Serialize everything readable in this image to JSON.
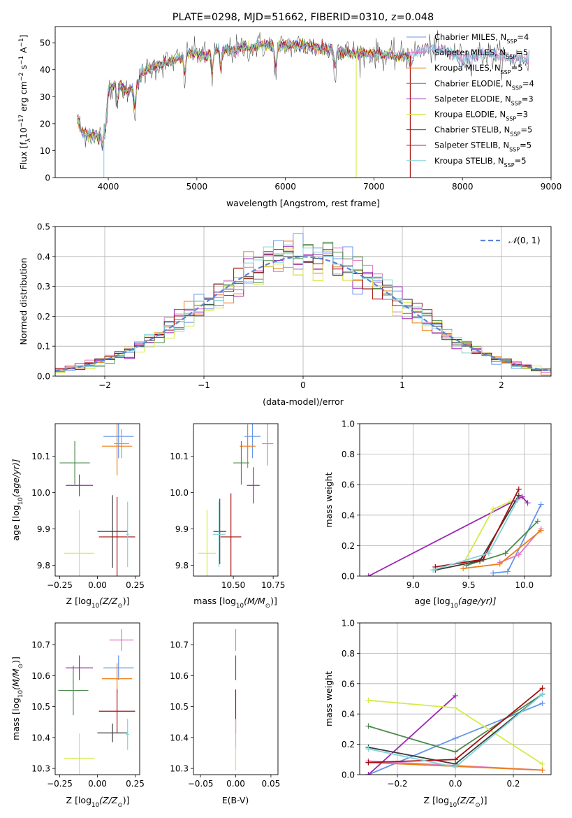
{
  "figure": {
    "colors": {
      "chabrier_miles": "#6495ed",
      "salpeter_miles": "#e377c2",
      "kroupa_miles": "#ee7d18",
      "chabrier_elodie": "#4e8a4e",
      "salpeter_elodie": "#9c27b0",
      "kroupa_elodie": "#d6ea4a",
      "chabrier_stelib": "#3c3c3c",
      "salpeter_stelib": "#a50f0f",
      "kroupa_stelib": "#7fd4d8",
      "normal_curve": "#5b84d6"
    }
  },
  "chart_data": [
    {
      "id": "spectrum",
      "type": "line",
      "title": "PLATE=0298, MJD=51662, FIBERID=0310, z=0.048",
      "xlabel": "wavelength [Angstrom, rest frame]",
      "ylabel": "Flux [f",
      "ylabel_sub": "λ",
      "ylabel_rest": "10",
      "ylabel_sup1": "−17",
      "ylabel_rest2": " erg cm",
      "ylabel_sup2": "−2",
      "ylabel_rest3": " s",
      "ylabel_sup3": "−1",
      "ylabel_rest4": " A",
      "ylabel_sup4": "−1",
      "ylabel_end": "]",
      "xlim": [
        3400,
        9000
      ],
      "ylim": [
        0,
        56
      ],
      "xticks": [
        4000,
        5000,
        6000,
        7000,
        8000,
        9000
      ],
      "yticks": [
        0,
        10,
        20,
        30,
        40,
        50
      ],
      "continuum": [
        [
          3650,
          22
        ],
        [
          3700,
          17
        ],
        [
          3800,
          16
        ],
        [
          3900,
          15
        ],
        [
          3950,
          20
        ],
        [
          4000,
          33
        ],
        [
          4100,
          35
        ],
        [
          4200,
          32
        ],
        [
          4300,
          33
        ],
        [
          4400,
          39
        ],
        [
          4500,
          41
        ],
        [
          4600,
          42
        ],
        [
          4700,
          43
        ],
        [
          4800,
          44
        ],
        [
          4900,
          46
        ],
        [
          5000,
          46
        ],
        [
          5100,
          45
        ],
        [
          5200,
          47
        ],
        [
          5300,
          47
        ],
        [
          5400,
          47
        ],
        [
          5500,
          48
        ],
        [
          5600,
          48
        ],
        [
          5700,
          49
        ],
        [
          5800,
          49
        ],
        [
          5900,
          48
        ],
        [
          6000,
          49
        ],
        [
          6200,
          49
        ],
        [
          6400,
          48
        ],
        [
          6600,
          47
        ],
        [
          6800,
          46
        ],
        [
          7000,
          46
        ],
        [
          7200,
          45
        ],
        [
          7400,
          45
        ],
        [
          7600,
          48
        ],
        [
          7800,
          47
        ],
        [
          8000,
          44
        ],
        [
          8200,
          46
        ],
        [
          8400,
          45
        ],
        [
          8600,
          44
        ],
        [
          8750,
          44
        ]
      ],
      "model_breaks": [
        {
          "series": "Kroupa ELODIE",
          "wavelength": 6800,
          "min_flux": 0
        },
        {
          "series": "Kroupa MILES",
          "wavelength": 7410,
          "min_flux": 0
        },
        {
          "series": "Salpeter STELIB",
          "wavelength": 7410,
          "min_flux": 0
        },
        {
          "series": "Kroupa STELIB",
          "wavelength": 3950,
          "min_flux": 0
        }
      ],
      "legend": [
        {
          "key": "chabrier_miles",
          "label": "Chabrier MILES, N",
          "sub": "SSP",
          "tail": "=4"
        },
        {
          "key": "salpeter_miles",
          "label": "Salpeter MILES, N",
          "sub": "SSP",
          "tail": "=5"
        },
        {
          "key": "kroupa_miles",
          "label": "Kroupa MILES, N",
          "sub": "SSP",
          "tail": "=5"
        },
        {
          "key": "chabrier_elodie",
          "label": "Chabrier ELODIE, N",
          "sub": "SSP",
          "tail": "=4"
        },
        {
          "key": "salpeter_elodie",
          "label": "Salpeter ELODIE, N",
          "sub": "SSP",
          "tail": "=3"
        },
        {
          "key": "kroupa_elodie",
          "label": "Kroupa ELODIE, N",
          "sub": "SSP",
          "tail": "=3"
        },
        {
          "key": "chabrier_stelib",
          "label": "Chabrier STELIB, N",
          "sub": "SSP",
          "tail": "=5"
        },
        {
          "key": "salpeter_stelib",
          "label": "Salpeter STELIB, N",
          "sub": "SSP",
          "tail": "=5"
        },
        {
          "key": "kroupa_stelib",
          "label": "Kroupa STELIB, N",
          "sub": "SSP",
          "tail": "=5"
        }
      ],
      "legend_position": "top-right"
    },
    {
      "id": "residuals",
      "type": "histogram",
      "xlabel": "(data-model)/error",
      "ylabel": "Normed distribution",
      "xlim": [
        -2.5,
        2.5
      ],
      "ylim": [
        0,
        0.5
      ],
      "xticks": [
        -2,
        -1,
        0,
        1,
        2
      ],
      "yticks": [
        0.0,
        0.1,
        0.2,
        0.3,
        0.4,
        0.5
      ],
      "bin_width": 0.1,
      "grid": true,
      "legend": [
        {
          "label": "N(0, 1)",
          "style": "dashed"
        }
      ],
      "legend_position": "top-right"
    },
    {
      "id": "age_vs_Z",
      "type": "errorbar",
      "xlabel": "Z [log",
      "xlabel_sub": "10",
      "xlabel_rest": "(Z/Z",
      "xlabel_sub2": "⊙",
      "xlabel_end": ")]",
      "ylabel": "age  [log",
      "ylabel_sub": "10",
      "ylabel_rest": "(age/yr)]",
      "xlim": [
        -0.28,
        0.28
      ],
      "ylim": [
        9.77,
        10.19
      ],
      "xticks": [
        -0.25,
        0.0,
        0.25
      ],
      "yticks": [
        9.8,
        9.9,
        10.0,
        10.1
      ],
      "points": [
        {
          "key": "chabrier_miles",
          "x": 0.14,
          "y": 10.155,
          "xerr": 0.1,
          "yerr": 0.06
        },
        {
          "key": "salpeter_miles",
          "x": 0.16,
          "y": 10.135,
          "xerr": 0.05,
          "yerr": 0.04
        },
        {
          "key": "kroupa_miles",
          "x": 0.13,
          "y": 10.128,
          "xerr": 0.1,
          "yerr": 0.08
        },
        {
          "key": "chabrier_elodie",
          "x": -0.15,
          "y": 10.082,
          "xerr": 0.1,
          "yerr": 0.06
        },
        {
          "key": "salpeter_elodie",
          "x": -0.12,
          "y": 10.02,
          "xerr": 0.09,
          "yerr": 0.03
        },
        {
          "key": "kroupa_elodie",
          "x": -0.12,
          "y": 9.833,
          "xerr": 0.1,
          "yerr": 0.12
        },
        {
          "key": "chabrier_stelib",
          "x": 0.1,
          "y": 9.893,
          "xerr": 0.1,
          "yerr": 0.1
        },
        {
          "key": "salpeter_stelib",
          "x": 0.13,
          "y": 9.878,
          "xerr": 0.12,
          "yerr": 0.11
        },
        {
          "key": "kroupa_stelib",
          "x": 0.2,
          "y": 9.885,
          "xerr": 0.01,
          "yerr": 0.09
        }
      ]
    },
    {
      "id": "age_vs_mass",
      "type": "errorbar",
      "xlabel": "mass [log",
      "xlabel_sub": "10",
      "xlabel_rest": "(M/M",
      "xlabel_sub2": "⊙",
      "xlabel_end": ")]",
      "xlim": [
        10.25,
        10.78
      ],
      "ylim": [
        9.77,
        10.19
      ],
      "xticks": [
        10.5,
        10.75
      ],
      "yticks": [
        9.8,
        9.9,
        10.0,
        10.1
      ],
      "points": [
        {
          "key": "chabrier_miles",
          "x": 10.62,
          "y": 10.155,
          "xerr": 0.05,
          "yerr": 0.06
        },
        {
          "key": "salpeter_miles",
          "x": 10.715,
          "y": 10.135,
          "xerr": 0.035,
          "yerr": 0.06
        },
        {
          "key": "kroupa_miles",
          "x": 10.59,
          "y": 10.128,
          "xerr": 0.05,
          "yerr": 0.06
        },
        {
          "key": "chabrier_elodie",
          "x": 10.55,
          "y": 10.082,
          "xerr": 0.05,
          "yerr": 0.06
        },
        {
          "key": "salpeter_elodie",
          "x": 10.625,
          "y": 10.02,
          "xerr": 0.04,
          "yerr": 0.05
        },
        {
          "key": "kroupa_elodie",
          "x": 10.335,
          "y": 9.833,
          "xerr": 0.055,
          "yerr": 0.12
        },
        {
          "key": "chabrier_stelib",
          "x": 10.415,
          "y": 9.893,
          "xerr": 0.04,
          "yerr": 0.09
        },
        {
          "key": "salpeter_stelib",
          "x": 10.485,
          "y": 9.878,
          "xerr": 0.065,
          "yerr": 0.12
        },
        {
          "key": "kroupa_stelib",
          "x": 10.41,
          "y": 9.885,
          "xerr": 0.04,
          "yerr": 0.09
        }
      ]
    },
    {
      "id": "weight_vs_age",
      "type": "line",
      "xlabel": "age  [log",
      "xlabel_sub": "10",
      "xlabel_rest": "(age/yr)]",
      "ylabel": "mass weight",
      "xlim": [
        8.52,
        10.24
      ],
      "ylim": [
        0,
        1.0
      ],
      "xticks": [
        9.0,
        9.5,
        10.0
      ],
      "yticks": [
        0.0,
        0.2,
        0.4,
        0.6,
        0.8,
        1.0
      ],
      "grid": true,
      "series": [
        {
          "key": "chabrier_miles",
          "x": [
            9.72,
            9.85,
            10.15
          ],
          "y": [
            0.02,
            0.03,
            0.47
          ]
        },
        {
          "key": "salpeter_miles",
          "x": [
            9.78,
            9.95,
            10.15
          ],
          "y": [
            0.09,
            0.14,
            0.31
          ]
        },
        {
          "key": "kroupa_miles",
          "x": [
            9.45,
            9.78,
            10.15
          ],
          "y": [
            0.05,
            0.08,
            0.3
          ]
        },
        {
          "key": "chabrier_elodie",
          "x": [
            9.48,
            9.83,
            10.12
          ],
          "y": [
            0.07,
            0.15,
            0.36
          ]
        },
        {
          "key": "salpeter_elodie",
          "x": [
            8.6,
            9.98,
            10.03
          ],
          "y": [
            0.0,
            0.52,
            0.48
          ]
        },
        {
          "key": "kroupa_elodie",
          "x": [
            9.45,
            9.72,
            9.88
          ],
          "y": [
            0.08,
            0.44,
            0.49
          ]
        },
        {
          "key": "chabrier_stelib",
          "x": [
            9.2,
            9.6,
            9.95
          ],
          "y": [
            0.04,
            0.1,
            0.53
          ]
        },
        {
          "key": "salpeter_stelib",
          "x": [
            9.2,
            9.63,
            9.95
          ],
          "y": [
            0.06,
            0.11,
            0.57
          ]
        },
        {
          "key": "kroupa_stelib",
          "x": [
            9.18,
            9.68,
            9.94
          ],
          "y": [
            0.04,
            0.15,
            0.5
          ]
        }
      ]
    },
    {
      "id": "mass_vs_Z",
      "type": "errorbar",
      "xlabel": "Z [log",
      "xlabel_sub": "10",
      "xlabel_rest": "(Z/Z",
      "xlabel_sub2": "⊙",
      "xlabel_end": ")]",
      "ylabel": "mass [log",
      "ylabel_sub": "10",
      "ylabel_rest": "(M/M",
      "ylabel_sub2": "⊙",
      "ylabel_end": ")]",
      "xlim": [
        -0.28,
        0.28
      ],
      "ylim": [
        10.28,
        10.77
      ],
      "xticks": [
        -0.25,
        0.0,
        0.25
      ],
      "yticks": [
        10.3,
        10.4,
        10.5,
        10.6,
        10.7
      ],
      "points": [
        {
          "key": "chabrier_miles",
          "x": 0.14,
          "y": 10.625,
          "xerr": 0.1,
          "yerr": 0.04
        },
        {
          "key": "salpeter_miles",
          "x": 0.16,
          "y": 10.715,
          "xerr": 0.08,
          "yerr": 0.035
        },
        {
          "key": "kroupa_miles",
          "x": 0.13,
          "y": 10.59,
          "xerr": 0.1,
          "yerr": 0.05
        },
        {
          "key": "chabrier_elodie",
          "x": -0.16,
          "y": 10.552,
          "xerr": 0.1,
          "yerr": 0.08
        },
        {
          "key": "salpeter_elodie",
          "x": -0.12,
          "y": 10.625,
          "xerr": 0.09,
          "yerr": 0.04
        },
        {
          "key": "kroupa_elodie",
          "x": -0.12,
          "y": 10.333,
          "xerr": 0.1,
          "yerr": 0.08
        },
        {
          "key": "chabrier_stelib",
          "x": 0.1,
          "y": 10.415,
          "xerr": 0.1,
          "yerr": 0.03
        },
        {
          "key": "salpeter_stelib",
          "x": 0.13,
          "y": 10.485,
          "xerr": 0.12,
          "yerr": 0.07
        },
        {
          "key": "kroupa_stelib",
          "x": 0.2,
          "y": 10.41,
          "xerr": 0.01,
          "yerr": 0.05
        }
      ]
    },
    {
      "id": "mass_vs_ebv",
      "type": "errorbar",
      "xlabel": "E(B-V)",
      "xlim": [
        -0.06,
        0.06
      ],
      "ylim": [
        10.28,
        10.77
      ],
      "xticks": [
        -0.05,
        0.0,
        0.05
      ],
      "yticks": [
        10.3,
        10.4,
        10.5,
        10.6,
        10.7
      ],
      "points": [
        {
          "key": "salpeter_miles",
          "x": 0.0,
          "y": 10.715,
          "xerr": 0.0,
          "yerr": 0.035
        },
        {
          "key": "salpeter_elodie",
          "x": 0.0,
          "y": 10.625,
          "xerr": 0.0,
          "yerr": 0.04
        },
        {
          "key": "salpeter_stelib",
          "x": 0.0,
          "y": 10.485,
          "xerr": 0.0,
          "yerr": 0.07
        },
        {
          "key": "kroupa_stelib",
          "x": 0.0,
          "y": 10.41,
          "xerr": 0.0,
          "yerr": 0.05
        },
        {
          "key": "kroupa_elodie",
          "x": 0.0,
          "y": 10.333,
          "xerr": 0.0,
          "yerr": 0.04
        }
      ]
    },
    {
      "id": "weight_vs_Z",
      "type": "line",
      "xlabel": "Z [log",
      "xlabel_sub": "10",
      "xlabel_rest": "(Z/Z",
      "xlabel_sub2": "⊙",
      "xlabel_end": ")]",
      "ylabel": "mass weight",
      "xlim": [
        -0.33,
        0.33
      ],
      "ylim": [
        0,
        1.0
      ],
      "xticks": [
        -0.2,
        0.0,
        0.2
      ],
      "yticks": [
        0.0,
        0.2,
        0.4,
        0.6,
        0.8,
        1.0
      ],
      "grid": true,
      "series": [
        {
          "key": "chabrier_miles",
          "x": [
            -0.3,
            0.0,
            0.3
          ],
          "y": [
            0.0,
            0.24,
            0.47
          ]
        },
        {
          "key": "salpeter_miles",
          "x": [
            -0.3,
            0.0,
            0.3
          ],
          "y": [
            0.09,
            0.06,
            0.03
          ]
        },
        {
          "key": "kroupa_miles",
          "x": [
            -0.3,
            0.0,
            0.3
          ],
          "y": [
            0.08,
            0.055,
            0.03
          ]
        },
        {
          "key": "chabrier_elodie",
          "x": [
            -0.3,
            0.0,
            0.3
          ],
          "y": [
            0.32,
            0.15,
            0.53
          ]
        },
        {
          "key": "salpeter_elodie",
          "x": [
            -0.3,
            0.0,
            0.0
          ],
          "y": [
            0.0,
            0.52,
            0.52
          ]
        },
        {
          "key": "kroupa_elodie",
          "x": [
            -0.3,
            0.0,
            0.3
          ],
          "y": [
            0.49,
            0.44,
            0.07
          ]
        },
        {
          "key": "chabrier_stelib",
          "x": [
            -0.3,
            0.0,
            0.3
          ],
          "y": [
            0.18,
            0.07,
            0.53
          ]
        },
        {
          "key": "salpeter_stelib",
          "x": [
            -0.3,
            0.0,
            0.3
          ],
          "y": [
            0.08,
            0.1,
            0.57
          ]
        },
        {
          "key": "kroupa_stelib",
          "x": [
            -0.3,
            0.0,
            0.3
          ],
          "y": [
            0.17,
            0.05,
            0.53
          ]
        }
      ]
    }
  ]
}
